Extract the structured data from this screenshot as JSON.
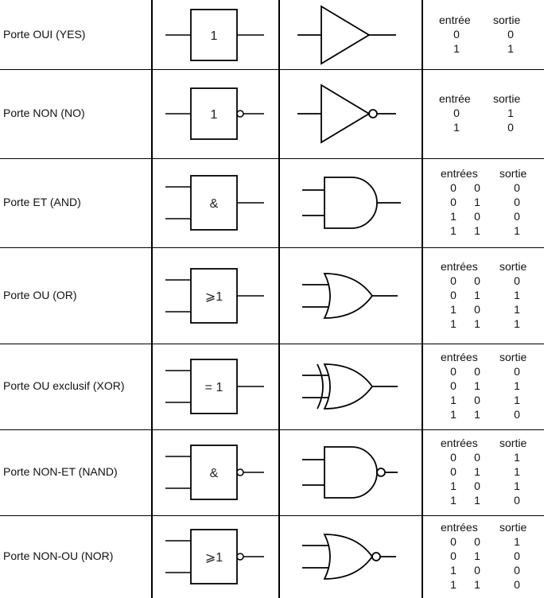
{
  "gates": [
    {
      "name": "Porte OUI (YES)",
      "iec_label": "1",
      "header_in": "entrée",
      "header_out": "sortie",
      "rows": [
        [
          "0",
          "0"
        ],
        [
          "1",
          "1"
        ]
      ]
    },
    {
      "name": "Porte NON (NO)",
      "iec_label": "1",
      "header_in": "entrée",
      "header_out": "sortie",
      "rows": [
        [
          "0",
          "1"
        ],
        [
          "1",
          "0"
        ]
      ]
    },
    {
      "name": "Porte ET (AND)",
      "iec_label": "&",
      "header_in": "entrées",
      "header_out": "sortie",
      "rows": [
        [
          "0",
          "0",
          "0"
        ],
        [
          "0",
          "1",
          "0"
        ],
        [
          "1",
          "0",
          "0"
        ],
        [
          "1",
          "1",
          "1"
        ]
      ]
    },
    {
      "name": "Porte OU (OR)",
      "iec_label": "⩾1",
      "header_in": "entrées",
      "header_out": "sortie",
      "rows": [
        [
          "0",
          "0",
          "0"
        ],
        [
          "0",
          "1",
          "1"
        ],
        [
          "1",
          "0",
          "1"
        ],
        [
          "1",
          "1",
          "1"
        ]
      ]
    },
    {
      "name": "Porte OU exclusif (XOR)",
      "iec_label": "= 1",
      "header_in": "entrées",
      "header_out": "sortie",
      "rows": [
        [
          "0",
          "0",
          "0"
        ],
        [
          "0",
          "1",
          "1"
        ],
        [
          "1",
          "0",
          "1"
        ],
        [
          "1",
          "1",
          "0"
        ]
      ]
    },
    {
      "name": "Porte NON-ET (NAND)",
      "iec_label": "&",
      "header_in": "entrées",
      "header_out": "sortie",
      "rows": [
        [
          "0",
          "0",
          "1"
        ],
        [
          "0",
          "1",
          "1"
        ],
        [
          "1",
          "0",
          "1"
        ],
        [
          "1",
          "1",
          "0"
        ]
      ]
    },
    {
      "name": "Porte NON-OU (NOR)",
      "iec_label": "⩾1",
      "header_in": "entrées",
      "header_out": "sortie",
      "rows": [
        [
          "0",
          "0",
          "1"
        ],
        [
          "0",
          "1",
          "0"
        ],
        [
          "1",
          "0",
          "0"
        ],
        [
          "1",
          "1",
          "0"
        ]
      ]
    }
  ]
}
